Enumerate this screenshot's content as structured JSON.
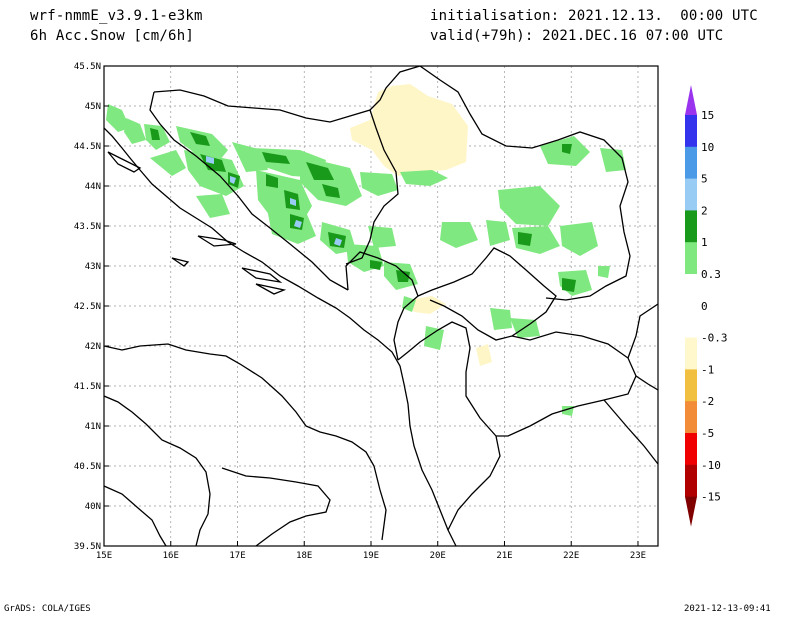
{
  "header": {
    "model": "wrf-nmmE_v3.9.1-e3km",
    "field": "6h Acc.Snow [cm/6h]",
    "init": "initialisation: 2021.12.13.  00:00 UTC",
    "valid": "valid(+79h): 2021.DEC.16 07:00 UTC"
  },
  "footer": {
    "left": "GrADS: COLA/IGES",
    "right": "2021-12-13-09:41"
  },
  "map": {
    "lon_labels": [
      "15E",
      "16E",
      "17E",
      "18E",
      "19E",
      "20E",
      "21E",
      "22E",
      "23E"
    ],
    "lat_labels": [
      "45.5N",
      "45N",
      "44.5N",
      "44N",
      "43.5N",
      "43N",
      "42.5N",
      "42N",
      "41.5N",
      "41N",
      "40.5N",
      "40N",
      "39.5N"
    ],
    "lon_range": [
      15,
      23.3
    ],
    "lat_range": [
      39.5,
      45.5
    ],
    "grid": true
  },
  "colorbar": {
    "labels": [
      "15",
      "10",
      "5",
      "2",
      "1",
      "0.3",
      "0",
      "-0.3",
      "-1",
      "-2",
      "-5",
      "-10",
      "-15"
    ],
    "colors": [
      "#3333ee",
      "#4a9ae8",
      "#99ccf5",
      "#1a9a1a",
      "#7fe87f",
      "#ffffff",
      "#ffffff",
      "#fff8cc",
      "#f2c040",
      "#f28c38",
      "#f00000",
      "#b00000"
    ],
    "top_color": "#9933ee",
    "bottom_color": "#800000"
  }
}
